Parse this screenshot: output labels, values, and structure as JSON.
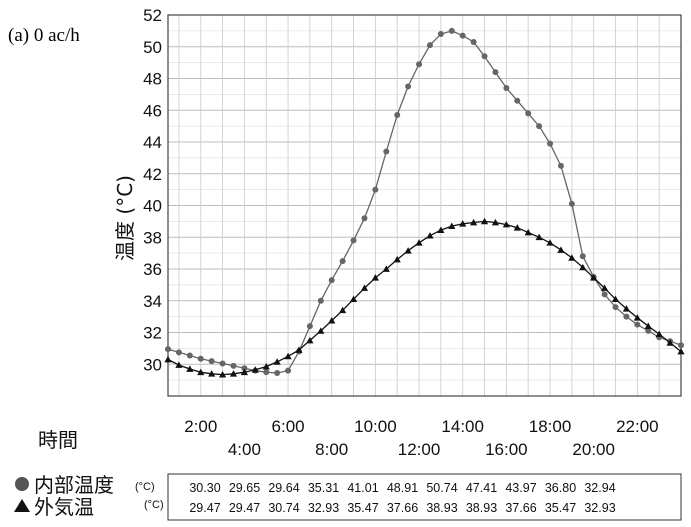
{
  "panel_label": "(a) 0 ac/h",
  "chart_data": {
    "type": "line",
    "xlabel": "時間",
    "ylabel": "温度 (°C)",
    "ylim": [
      28,
      52
    ],
    "yticks": [
      30,
      32,
      34,
      36,
      38,
      40,
      42,
      44,
      46,
      48,
      50,
      52
    ],
    "xlim": [
      0.5,
      24
    ],
    "xticks_top": [
      "2:00",
      "6:00",
      "10:00",
      "14:00",
      "18:00",
      "22:00"
    ],
    "xticks_bottom": [
      "4:00",
      "8:00",
      "12:00",
      "16:00",
      "20:00"
    ],
    "grid": true,
    "legend_position": "bottom-left",
    "series": [
      {
        "name": "内部温度",
        "unit": "(°C)",
        "marker": "circle",
        "color": "#666666",
        "x": [
          0.5,
          1,
          1.5,
          2,
          2.5,
          3,
          3.5,
          4,
          4.5,
          5,
          5.5,
          6,
          6.5,
          7,
          7.5,
          8,
          8.5,
          9,
          9.5,
          10,
          10.5,
          11,
          11.5,
          12,
          12.5,
          13,
          13.5,
          14,
          14.5,
          15,
          15.5,
          16,
          16.5,
          17,
          17.5,
          18,
          18.5,
          19,
          19.5,
          20,
          20.5,
          21,
          21.5,
          22,
          22.5,
          23,
          23.5,
          24
        ],
        "y": [
          30.95,
          30.75,
          30.55,
          30.35,
          30.2,
          30.05,
          29.9,
          29.75,
          29.6,
          29.5,
          29.45,
          29.6,
          30.8,
          32.4,
          34.0,
          35.3,
          36.5,
          37.8,
          39.2,
          41.0,
          43.4,
          45.7,
          47.5,
          48.9,
          50.1,
          50.8,
          51.0,
          50.7,
          50.3,
          49.4,
          48.4,
          47.4,
          46.6,
          45.8,
          45.0,
          43.9,
          42.5,
          40.1,
          36.8,
          35.5,
          34.4,
          33.6,
          33.0,
          32.5,
          32.1,
          31.7,
          31.45,
          31.2
        ],
        "table_values": [
          "30.30",
          "29.65",
          "29.64",
          "35.31",
          "41.01",
          "48.91",
          "50.74",
          "47.41",
          "43.97",
          "36.80",
          "32.94"
        ]
      },
      {
        "name": "外気温",
        "unit": "(°C)",
        "marker": "triangle",
        "color": "#111111",
        "x": [
          0.5,
          1,
          1.5,
          2,
          2.5,
          3,
          3.5,
          4,
          4.5,
          5,
          5.5,
          6,
          6.5,
          7,
          7.5,
          8,
          8.5,
          9,
          9.5,
          10,
          10.5,
          11,
          11.5,
          12,
          12.5,
          13,
          13.5,
          14,
          14.5,
          15,
          15.5,
          16,
          16.5,
          17,
          17.5,
          18,
          18.5,
          19,
          19.5,
          20,
          20.5,
          21,
          21.5,
          22,
          22.5,
          23,
          23.5,
          24
        ],
        "y": [
          30.3,
          29.95,
          29.7,
          29.5,
          29.4,
          29.35,
          29.4,
          29.5,
          29.65,
          29.85,
          30.15,
          30.5,
          30.9,
          31.5,
          32.1,
          32.75,
          33.4,
          34.1,
          34.8,
          35.45,
          36.0,
          36.6,
          37.15,
          37.65,
          38.1,
          38.45,
          38.7,
          38.85,
          38.93,
          39.0,
          38.93,
          38.8,
          38.6,
          38.3,
          38.0,
          37.65,
          37.2,
          36.7,
          36.1,
          35.45,
          34.8,
          34.1,
          33.5,
          32.93,
          32.4,
          31.9,
          31.35,
          30.8
        ],
        "table_values": [
          "29.47",
          "29.47",
          "30.74",
          "32.93",
          "35.47",
          "37.66",
          "38.93",
          "38.93",
          "37.66",
          "35.47",
          "32.93"
        ]
      }
    ]
  }
}
